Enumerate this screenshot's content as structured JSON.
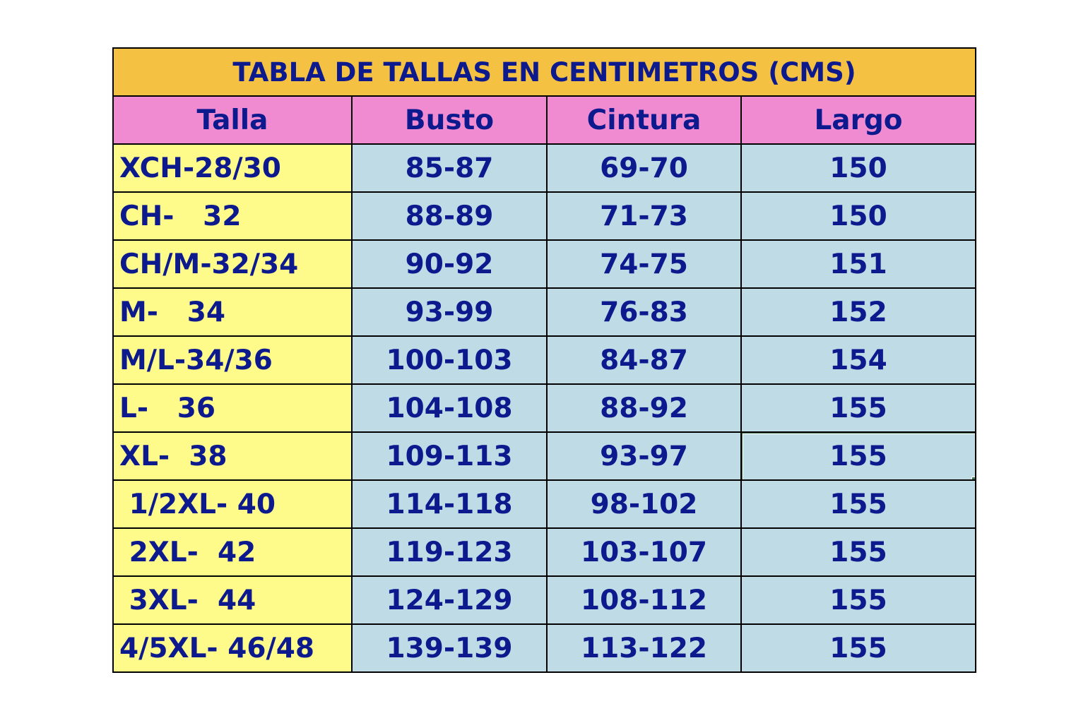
{
  "title": "TABLA DE TALLAS EN CENTIMETROS (CMS)",
  "columns": [
    "Talla",
    "Busto",
    "Cintura",
    "Largo"
  ],
  "rows": [
    [
      "XCH-28/30",
      "85-87",
      "69-70",
      "150"
    ],
    [
      "CH-   32",
      "88-89",
      "71-73",
      "150"
    ],
    [
      "CH/M-32/34",
      "90-92",
      "74-75",
      "151"
    ],
    [
      "M-   34",
      "93-99",
      "76-83",
      "152"
    ],
    [
      "M/L-34/36",
      "100-103",
      "84-87",
      "154"
    ],
    [
      "L-   36",
      "104-108",
      "88-92",
      "155"
    ],
    [
      "XL-  38",
      "109-113",
      "93-97",
      "155"
    ],
    [
      " 1/2XL- 40",
      "114-118",
      "98-102",
      "155"
    ],
    [
      " 2XL-  42",
      "119-123",
      "103-107",
      "155"
    ],
    [
      " 3XL-  44",
      "124-129",
      "108-112",
      "155"
    ],
    [
      "4/5XL- 46/48",
      "139-139",
      "113-122",
      "155"
    ]
  ],
  "colors": {
    "title_bg": "#f4c142",
    "header_bg": "#f08bd2",
    "size_bg": "#fffb8a",
    "value_bg": "#bfdce6",
    "text": "#0d1a8e",
    "selection": "#3f7049"
  },
  "selected_cell": {
    "row": 6,
    "column": "Largo"
  }
}
